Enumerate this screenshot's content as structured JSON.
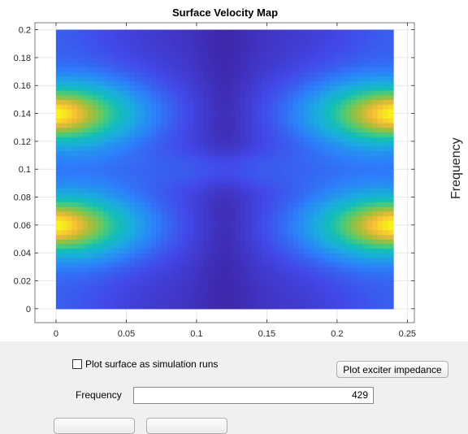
{
  "chart_data": {
    "type": "heatmap",
    "title": "Surface Velocity Map",
    "xlabel": "",
    "ylabel": "",
    "xlim": [
      -0.015,
      0.255
    ],
    "ylim": [
      -0.01,
      0.205
    ],
    "x_ticks": [
      "0",
      "0.05",
      "0.1",
      "0.15",
      "0.2",
      "0.25"
    ],
    "x_tick_values": [
      0,
      0.05,
      0.1,
      0.15,
      0.2,
      0.25
    ],
    "y_ticks": [
      "0",
      "0.02",
      "0.04",
      "0.06",
      "0.08",
      "0.1",
      "0.12",
      "0.14",
      "0.16",
      "0.18",
      "0.2"
    ],
    "y_tick_values": [
      0,
      0.02,
      0.04,
      0.06,
      0.08,
      0.1,
      0.12,
      0.14,
      0.16,
      0.18,
      0.2
    ],
    "grid": true,
    "colormap": "parula",
    "data_extent": {
      "x": [
        0,
        0.24
      ],
      "y": [
        0,
        0.2
      ]
    },
    "hotspots_xy": [
      [
        0.0,
        0.06
      ],
      [
        0.0,
        0.14
      ],
      [
        0.24,
        0.06
      ],
      [
        0.24,
        0.14
      ]
    ],
    "colors": {
      "low": "#3e26a8",
      "mid": "#12beb9",
      "high": "#f9fb15"
    }
  },
  "side_label": "Frequency",
  "controls": {
    "plot_surface_checkbox": {
      "label": "Plot surface as simulation runs",
      "checked": false
    },
    "plot_impedance_button": "Plot exciter impedance",
    "frequency_label": "Frequency",
    "frequency_value": "429"
  }
}
